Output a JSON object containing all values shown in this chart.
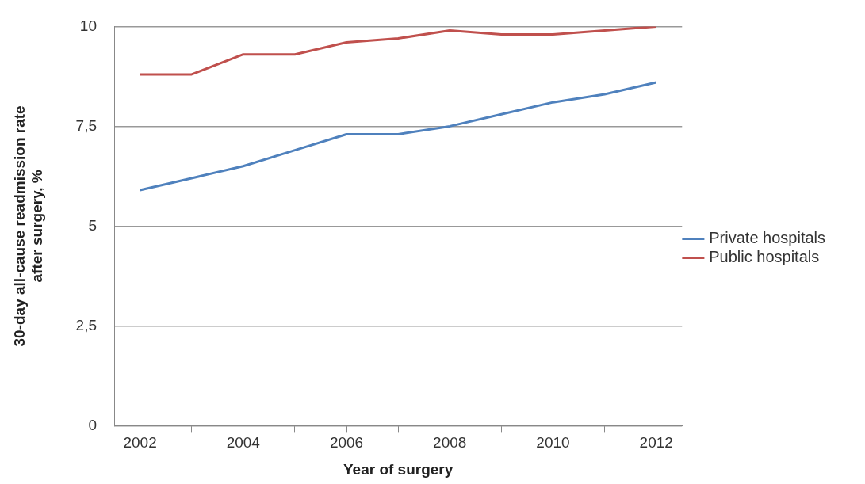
{
  "chart_data": {
    "type": "line",
    "xlabel": "Year of surgery",
    "ylabel": "30-day all-cause readmission rate after surgery, %",
    "categories": [
      "2002",
      null,
      "2004",
      null,
      "2006",
      null,
      "2008",
      null,
      "2010",
      null,
      "2012"
    ],
    "series": [
      {
        "name": "Private hospitals",
        "color": "#4f81bd",
        "values": [
          5.9,
          6.2,
          6.5,
          6.9,
          7.3,
          7.3,
          7.5,
          7.8,
          8.1,
          8.3,
          8.6
        ]
      },
      {
        "name": "Public hospitals",
        "color": "#c0504d",
        "values": [
          8.8,
          8.8,
          9.3,
          9.3,
          9.6,
          9.7,
          9.9,
          9.8,
          9.8,
          9.9,
          10.0
        ]
      }
    ],
    "ylim": [
      0,
      10
    ],
    "yticks": [
      0,
      {
        "value": 2.5,
        "label": "2,5"
      },
      5,
      {
        "value": 7.5,
        "label": "7,5"
      },
      10
    ],
    "grid": "y",
    "legend": "right",
    "marker": "none",
    "line_style": "solid"
  }
}
